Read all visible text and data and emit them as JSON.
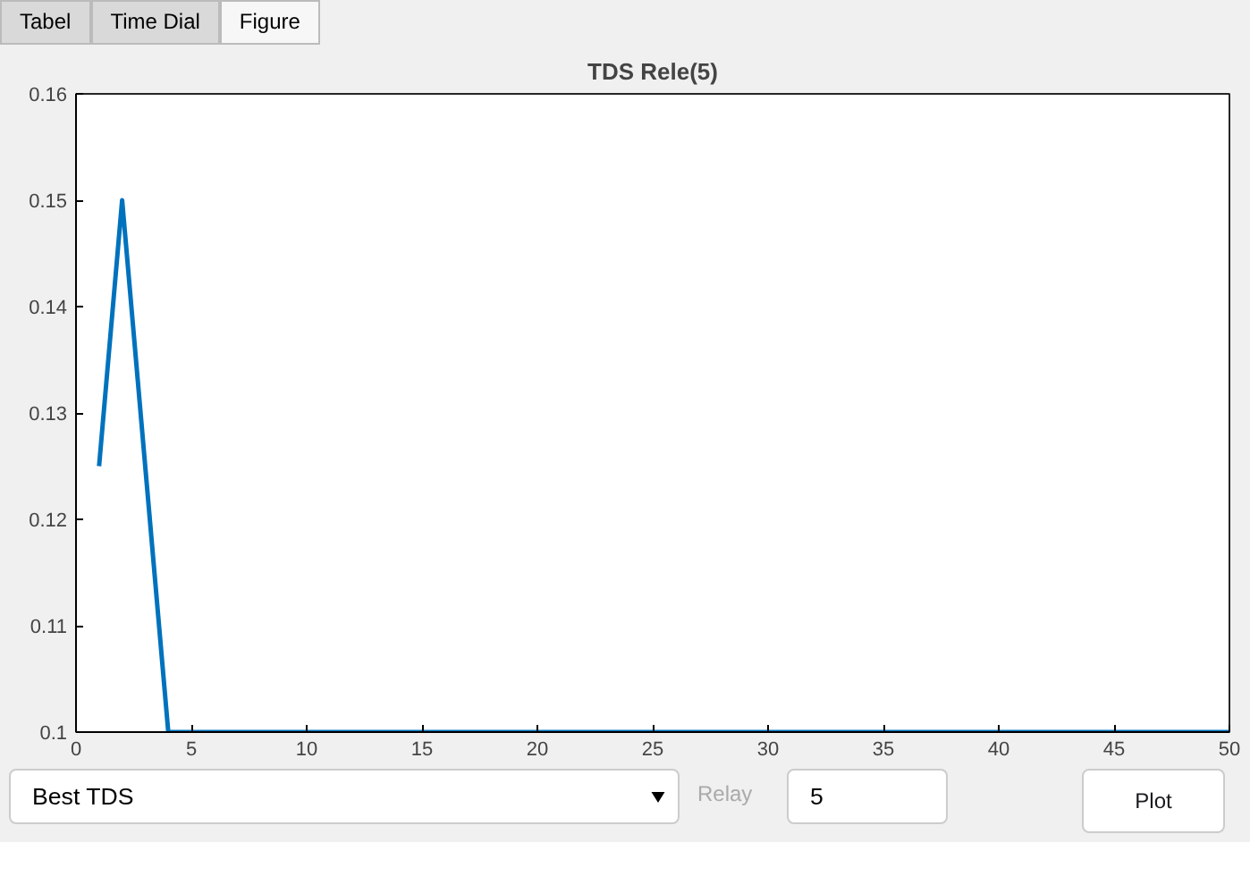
{
  "chart_data": {
    "type": "line",
    "title": "TDS Rele(5)",
    "x": [
      1,
      2,
      3,
      4,
      50
    ],
    "series": [
      {
        "color": "#0072bd",
        "values": [
          0.125,
          0.15,
          0.125,
          0.1,
          0.1
        ]
      }
    ],
    "xlim": [
      0,
      50
    ],
    "xticks": [
      0,
      5,
      10,
      15,
      20,
      25,
      30,
      35,
      40,
      45,
      50
    ],
    "ylim": [
      0.1,
      0.16
    ],
    "yticks": [
      0.1,
      0.11,
      0.12,
      0.13,
      0.14,
      0.15,
      0.16
    ],
    "grid": false,
    "line_style": "solid",
    "marker": "none",
    "annotations": [
      "Tabel",
      "Time Dial",
      "Figure",
      "Best TDS",
      "Relay",
      "5",
      "Plot"
    ]
  }
}
